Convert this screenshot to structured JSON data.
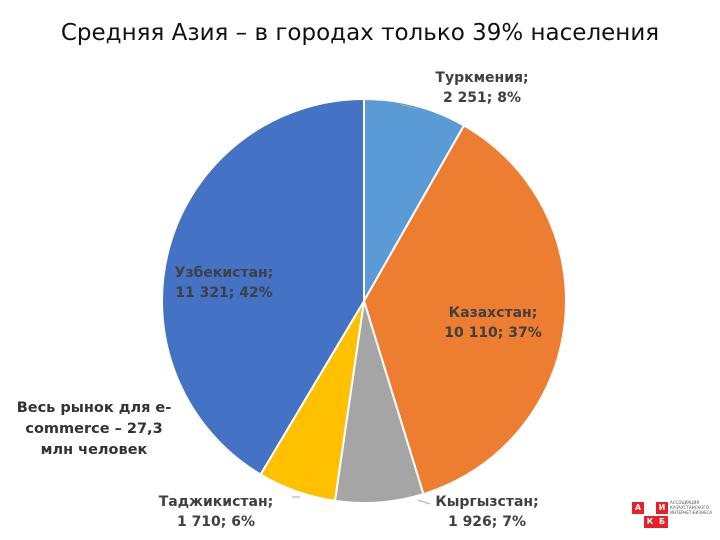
{
  "title": "Средняя Азия – в городах только 39% населения",
  "market_note": "Весь рынок для e-commerce – 27,3 млн человек",
  "logo": {
    "letters": [
      "А",
      "И",
      "К",
      "Б"
    ],
    "text": "АССОЦИАЦИЯ КАЗАХСТАНСКОГО ИНТЕРНЕТ-БИЗНЕСА"
  },
  "colors": {
    "Туркмения": "#5B9BD5",
    "Казахстан": "#ED7D31",
    "Кыргызстан": "#A5A5A5",
    "Таджикистан": "#FFC000",
    "Узбекистан": "#4472C4",
    "logo_red": "#e8202a"
  },
  "chart_data": {
    "type": "pie",
    "title": "",
    "slices": [
      {
        "label": "Туркмения",
        "value": 2251,
        "value_text": "2 251",
        "percent": 8
      },
      {
        "label": "Казахстан",
        "value": 10110,
        "value_text": "10 110",
        "percent": 37
      },
      {
        "label": "Кыргызстан",
        "value": 1926,
        "value_text": "1 926",
        "percent": 7
      },
      {
        "label": "Таджикистан",
        "value": 1710,
        "value_text": "1 710",
        "percent": 6
      },
      {
        "label": "Узбекистан",
        "value": 11321,
        "value_text": "11 321",
        "percent": 42
      }
    ],
    "start": "12 o'clock",
    "direction": "clockwise",
    "legend": "none"
  }
}
